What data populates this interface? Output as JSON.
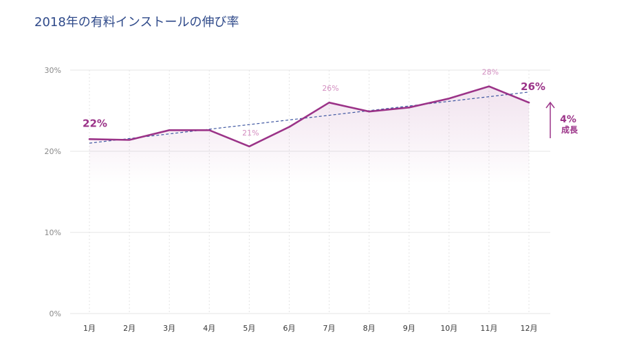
{
  "title": "2018年の有料インストールの伸び率",
  "colors": {
    "line": "#9b3388",
    "trend": "#3d55a0",
    "grid": "#e6e6e6",
    "vgrid": "#e3e3e3",
    "annotation": "#d38ec0",
    "fill": "#9b3388"
  },
  "chart_data": {
    "type": "line",
    "title": "2018年の有料インストールの伸び率",
    "categories": [
      "1月",
      "2月",
      "3月",
      "4月",
      "5月",
      "6月",
      "7月",
      "8月",
      "9月",
      "10月",
      "11月",
      "12月"
    ],
    "values": [
      21.5,
      21.4,
      22.6,
      22.6,
      20.6,
      23.0,
      26.0,
      24.9,
      25.4,
      26.5,
      28.0,
      26.0
    ],
    "trend": {
      "start": 21.0,
      "end": 27.3
    },
    "ylim": [
      0,
      30
    ],
    "yticks": [
      0,
      10,
      20,
      30
    ],
    "ytick_labels": [
      "0%",
      "10%",
      "20%",
      "30%"
    ],
    "grid": true,
    "annotations": [
      {
        "index": 0,
        "text": "22%",
        "style": "strong"
      },
      {
        "index": 4,
        "text": "21%",
        "style": "light"
      },
      {
        "index": 6,
        "text": "26%",
        "style": "light"
      },
      {
        "index": 10,
        "text": "28%",
        "style": "light"
      },
      {
        "index": 11,
        "text": "26%",
        "style": "strong"
      }
    ],
    "growth": {
      "value": "4%",
      "label": "成長"
    }
  }
}
